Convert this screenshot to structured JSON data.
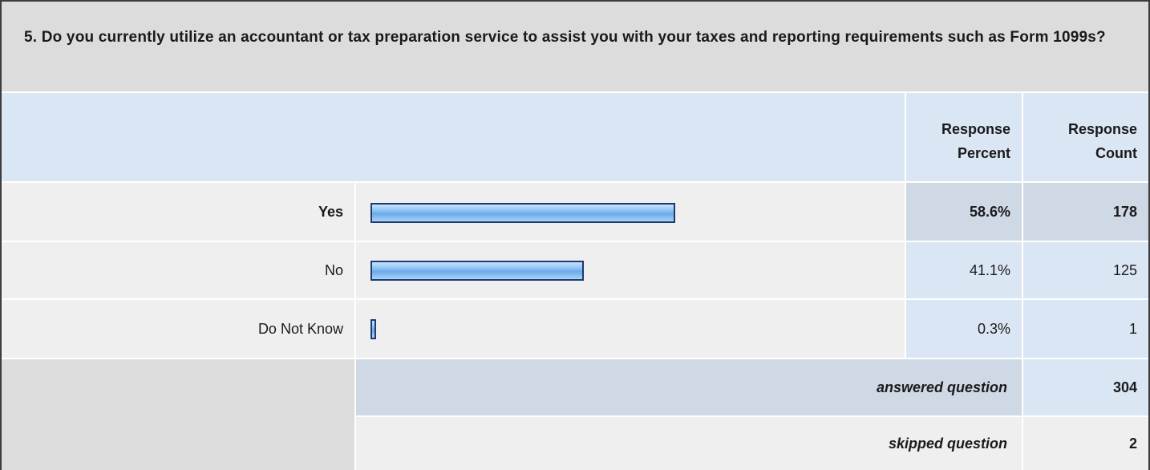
{
  "question": "5. Do you currently utilize an accountant or tax preparation service to assist you with your taxes and reporting requirements such as Form 1099s?",
  "header": {
    "response_percent": [
      "Response",
      "Percent"
    ],
    "response_count": [
      "Response",
      "Count"
    ]
  },
  "rows": [
    {
      "label": "Yes",
      "percent": "58.6%",
      "count": "178",
      "highlight": true
    },
    {
      "label": "No",
      "percent": "41.1%",
      "count": "125",
      "highlight": false
    },
    {
      "label": "Do Not Know",
      "percent": "0.3%",
      "count": "1",
      "highlight": false
    }
  ],
  "summary": {
    "answered_label": "answered question",
    "answered_value": "304",
    "skipped_label": "skipped question",
    "skipped_value": "2"
  },
  "chart_data": {
    "type": "bar",
    "orientation": "horizontal",
    "categories": [
      "Yes",
      "No",
      "Do Not Know"
    ],
    "values": [
      58.6,
      41.1,
      0.3
    ],
    "unit": "%",
    "counts": [
      178,
      125,
      1
    ]
  },
  "colors": {
    "bar_border": "#1f3a6e",
    "bar_fill": "#8fc4f5",
    "header_bg": "#dbe6f5",
    "title_bg": "#dcdcdc"
  }
}
